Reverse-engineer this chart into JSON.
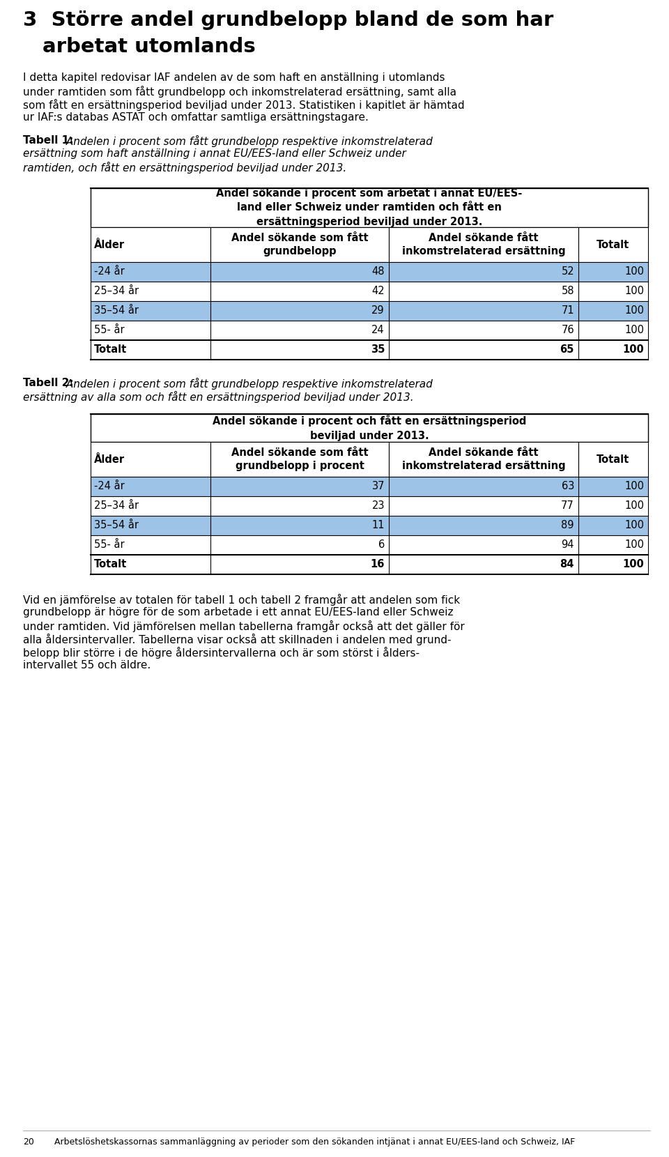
{
  "title_line1": "3  Större andel grundbelopp bland de som har",
  "title_line2": "    arbetat utomlands",
  "intro_text_lines": [
    "I detta kapitel redovisar IAF andelen av de som haft en anställning i utomlands",
    "under ramtiden som fått grundbelopp och inkomstrelaterad ersättning, samt alla",
    "som fått en ersättningsperiod beviljad under 2013. Statistiken i kapitlet är hämtad",
    "ur IAF:s databas ASTAT och omfattar samtliga ersättningstagare."
  ],
  "tabell1_cap_bold": "Tabell 1:",
  "tabell1_cap_italic_lines": [
    " Andelen i procent som fått grundbelopp respektive inkomstrelaterad",
    "ersättning som haft anställning i annat EU/EES-land eller Schweiz under",
    "ramtiden, och fått en ersättningsperiod beviljad under 2013."
  ],
  "tabell1_header_lines": [
    "Andel sökande i procent som arbetat i annat EU/EES-",
    "land eller Schweiz under ramtiden och fått en",
    "ersättningsperiod beviljad under 2013."
  ],
  "tabell1_subhdr_col0": "Ålder",
  "tabell1_subhdr_col1": "Andel sökande som fått\ngrundbelopp",
  "tabell1_subhdr_col2": "Andel sökande fått\ninkomstrelaterad ersättning",
  "tabell1_subhdr_col3": "Totalt",
  "tabell1_rows": [
    [
      "-24 år",
      "48",
      "52",
      "100"
    ],
    [
      "25–34 år",
      "42",
      "58",
      "100"
    ],
    [
      "35–54 år",
      "29",
      "71",
      "100"
    ],
    [
      "55- år",
      "24",
      "76",
      "100"
    ],
    [
      "Totalt",
      "35",
      "65",
      "100"
    ]
  ],
  "tabell1_row_colors": [
    "#9DC3E6",
    "#FFFFFF",
    "#9DC3E6",
    "#FFFFFF",
    "#FFFFFF"
  ],
  "tabell1_bold_rows": [
    false,
    false,
    false,
    false,
    true
  ],
  "tabell2_cap_bold": "Tabell 2:",
  "tabell2_cap_italic_lines": [
    " Andelen i procent som fått grundbelopp respektive inkomstrelaterad",
    "ersättning av alla som och fått en ersättningsperiod beviljad under 2013."
  ],
  "tabell2_header_lines": [
    "Andel sökande i procent och fått en ersättningsperiod",
    "beviljad under 2013."
  ],
  "tabell2_subhdr_col0": "Ålder",
  "tabell2_subhdr_col1": "Andel sökande som fått\ngrundbelopp i procent",
  "tabell2_subhdr_col2": "Andel sökande fått\ninkomstrelaterad ersättning",
  "tabell2_subhdr_col3": "Totalt",
  "tabell2_rows": [
    [
      "-24 år",
      "37",
      "63",
      "100"
    ],
    [
      "25–34 år",
      "23",
      "77",
      "100"
    ],
    [
      "35–54 år",
      "11",
      "89",
      "100"
    ],
    [
      "55- år",
      "6",
      "94",
      "100"
    ],
    [
      "Totalt",
      "16",
      "84",
      "100"
    ]
  ],
  "tabell2_row_colors": [
    "#9DC3E6",
    "#FFFFFF",
    "#9DC3E6",
    "#FFFFFF",
    "#FFFFFF"
  ],
  "tabell2_bold_rows": [
    false,
    false,
    false,
    false,
    true
  ],
  "closing_text_lines": [
    "Vid en jämförelse av totalen för tabell 1 och tabell 2 framgår att andelen som fick",
    "grundbelopp är högre för de som arbetade i ett annat EU/EES-land eller Schweiz",
    "under ramtiden. Vid jämförelsen mellan tabellerna framgår också att det gäller för",
    "alla åldersintervaller. Tabellerna visar också att skillnaden i andelen med grund-",
    "belopp blir större i de högre åldersintervallerna och är som störst i ålders-",
    "intervallet 55 och äldre."
  ],
  "footer_page": "20",
  "footer_text": "Arbetslöshetskassornas sammanläggning av perioder som den sökanden intjänat i annat EU/EES-land och Schweiz, IAF",
  "bg_color": "#FFFFFF",
  "text_color": "#000000",
  "border_color": "#000000",
  "highlight_color": "#9DC3E6"
}
